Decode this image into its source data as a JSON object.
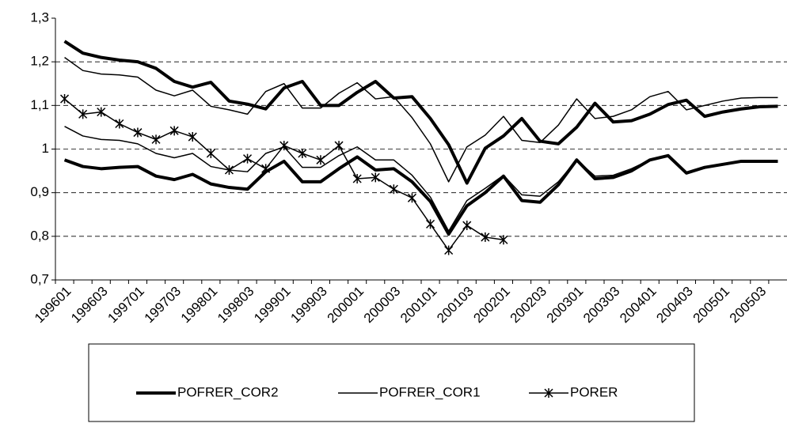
{
  "chart_data": {
    "type": "line",
    "categories": [
      "199601",
      null,
      "199603",
      null,
      "199701",
      null,
      "199703",
      null,
      "199801",
      null,
      "199803",
      null,
      "199901",
      null,
      "199903",
      null,
      "200001",
      null,
      "200003",
      null,
      "200101",
      null,
      "200103",
      null,
      "200201",
      null,
      "200203",
      null,
      "200301",
      null,
      "200303",
      null,
      "200401",
      null,
      "200403",
      null,
      "200501",
      null,
      "200503",
      null
    ],
    "ylim": [
      0.7,
      1.3
    ],
    "yticks": [
      {
        "value": 0.7,
        "label": "0,7"
      },
      {
        "value": 0.8,
        "label": "0,8"
      },
      {
        "value": 0.9,
        "label": "0,9"
      },
      1,
      {
        "value": 1.1,
        "label": "1,1"
      },
      {
        "value": 1.2,
        "label": "1,2"
      },
      {
        "value": 1.3,
        "label": "1,3"
      }
    ],
    "grid": true,
    "series": [
      {
        "name": "POFRER_COR2",
        "color": "#000000",
        "style": "thick",
        "values": [
          1.247,
          1.22,
          1.21,
          1.204,
          1.2,
          1.185,
          1.155,
          1.142,
          1.153,
          1.11,
          1.103,
          1.092,
          1.14,
          1.155,
          1.1,
          1.1,
          1.13,
          1.155,
          1.117,
          1.12,
          1.07,
          1.01,
          0.922,
          1.002,
          1.03,
          1.07,
          1.018,
          1.012,
          1.05,
          1.105,
          1.062,
          1.065,
          1.08,
          1.102,
          1.112,
          1.075,
          1.085,
          1.092,
          1.097,
          1.098
        ]
      },
      {
        "name": "POFRER_COR1",
        "color": "#000000",
        "style": "thin",
        "values": [
          1.21,
          1.18,
          1.172,
          1.17,
          1.165,
          1.135,
          1.122,
          1.135,
          1.098,
          1.09,
          1.08,
          1.132,
          1.15,
          1.094,
          1.094,
          1.128,
          1.152,
          1.115,
          1.12,
          1.072,
          1.012,
          0.925,
          1.005,
          1.032,
          1.075,
          1.02,
          1.015,
          1.055,
          1.115,
          1.07,
          1.075,
          1.09,
          1.12,
          1.132,
          1.09,
          1.1,
          1.11,
          1.117,
          1.118,
          1.118
        ]
      },
      {
        "name": "PORER",
        "color": "#000000",
        "style": "marker",
        "values": [
          1.115,
          1.08,
          1.085,
          1.058,
          1.038,
          1.022,
          1.042,
          1.028,
          0.99,
          0.952,
          0.978,
          0.955,
          1.008,
          0.99,
          0.975,
          1.008,
          0.932,
          0.935,
          0.908,
          0.888,
          0.828,
          0.768,
          0.825,
          0.798,
          0.792,
          null,
          null,
          null,
          null,
          null,
          null,
          null,
          null,
          null,
          null,
          null,
          null,
          null,
          null,
          null
        ]
      },
      {
        "color": "#000000",
        "style": "thick",
        "values": [
          0.975,
          0.96,
          0.955,
          0.958,
          0.96,
          0.938,
          0.93,
          0.942,
          0.92,
          0.912,
          0.908,
          0.948,
          0.972,
          0.925,
          0.925,
          0.955,
          0.982,
          0.952,
          0.955,
          0.925,
          0.88,
          0.805,
          0.87,
          0.9,
          0.938,
          0.882,
          0.878,
          0.918,
          0.975,
          0.932,
          0.935,
          0.95,
          0.975,
          0.985,
          0.945,
          0.958,
          0.965,
          0.972,
          0.972,
          0.972
        ]
      },
      {
        "color": "#000000",
        "style": "thin",
        "values": [
          1.052,
          1.03,
          1.022,
          1.02,
          1.012,
          0.99,
          0.98,
          0.99,
          0.96,
          0.952,
          0.948,
          0.99,
          1.005,
          0.958,
          0.958,
          0.985,
          1.005,
          0.975,
          0.975,
          0.94,
          0.89,
          0.812,
          0.882,
          0.91,
          0.94,
          0.895,
          0.892,
          0.925,
          0.975,
          0.938,
          0.94,
          0.955,
          0.975,
          0.985,
          0.945,
          0.958,
          0.965,
          0.972,
          0.972,
          0.972
        ]
      }
    ]
  }
}
